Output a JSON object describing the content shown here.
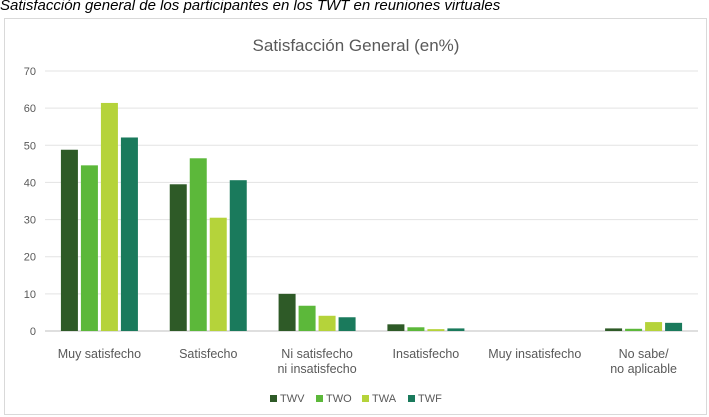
{
  "caption": "Satisfacción general de los participantes en los TWT en reuniones virtuales",
  "chart_data": {
    "type": "bar",
    "title": "Satisfacción General (en%)",
    "categories": [
      [
        "Muy satisfecho"
      ],
      [
        "Satisfecho"
      ],
      [
        "Ni satisfecho",
        "ni insatisfecho"
      ],
      [
        "Insatisfecho"
      ],
      [
        "Muy insatisfecho"
      ],
      [
        "No sabe/",
        "no aplicable"
      ]
    ],
    "series": [
      {
        "name": "TWV",
        "color": "#2e5a27",
        "values": [
          48.8,
          39.5,
          10.0,
          1.8,
          0,
          0.7
        ]
      },
      {
        "name": "TWO",
        "color": "#5cb83a",
        "values": [
          44.6,
          46.5,
          6.8,
          1.0,
          0,
          0.6
        ]
      },
      {
        "name": "TWA",
        "color": "#b5d33a",
        "values": [
          61.4,
          30.5,
          4.1,
          0.5,
          0,
          2.4
        ]
      },
      {
        "name": "TWF",
        "color": "#1a7a5c",
        "values": [
          52.1,
          40.6,
          3.7,
          0.7,
          0,
          2.2
        ]
      }
    ],
    "ylim": [
      0,
      70
    ],
    "yticks": [
      0,
      10,
      20,
      30,
      40,
      50,
      60,
      70
    ],
    "grid": true,
    "legend": "bottom"
  }
}
